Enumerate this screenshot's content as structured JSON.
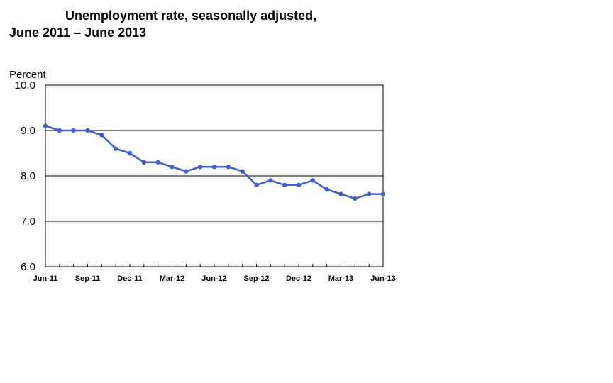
{
  "chart_data": {
    "type": "line",
    "title_line1": "Unemployment rate, seasonally adjusted,",
    "title_line2": "June 2011 – June 2013",
    "ylabel": "Percent",
    "xlabel": "",
    "ylim": [
      6.0,
      10.0
    ],
    "yticks": [
      "10.0",
      "9.0",
      "8.0",
      "7.0",
      "6.0"
    ],
    "ytick_values": [
      10,
      9,
      8,
      7,
      6
    ],
    "grid_y": true,
    "legend": "none",
    "categories": [
      "Jun-11",
      "Jul-11",
      "Aug-11",
      "Sep-11",
      "Oct-11",
      "Nov-11",
      "Dec-11",
      "Jan-12",
      "Feb-12",
      "Mar-12",
      "Apr-12",
      "May-12",
      "Jun-12",
      "Jul-12",
      "Aug-12",
      "Sep-12",
      "Oct-12",
      "Nov-12",
      "Dec-12",
      "Jan-13",
      "Feb-13",
      "Mar-13",
      "Apr-13",
      "May-13",
      "Jun-13"
    ],
    "x_tick_labels": [
      "Jun-11",
      "Sep-11",
      "Dec-11",
      "Mar-12",
      "Jun-12",
      "Sep-12",
      "Dec-12",
      "Mar-13",
      "Jun-13"
    ],
    "x_tick_label_indices": [
      0,
      3,
      6,
      9,
      12,
      15,
      18,
      21,
      24
    ],
    "series": [
      {
        "values": [
          9.1,
          9.0,
          9.0,
          9.0,
          8.9,
          8.6,
          8.5,
          8.3,
          8.3,
          8.2,
          8.1,
          8.2,
          8.2,
          8.2,
          8.1,
          7.8,
          7.9,
          7.8,
          7.8,
          7.9,
          7.7,
          7.6,
          7.5,
          7.6,
          7.6
        ],
        "color": "#3c5fe0"
      }
    ]
  }
}
